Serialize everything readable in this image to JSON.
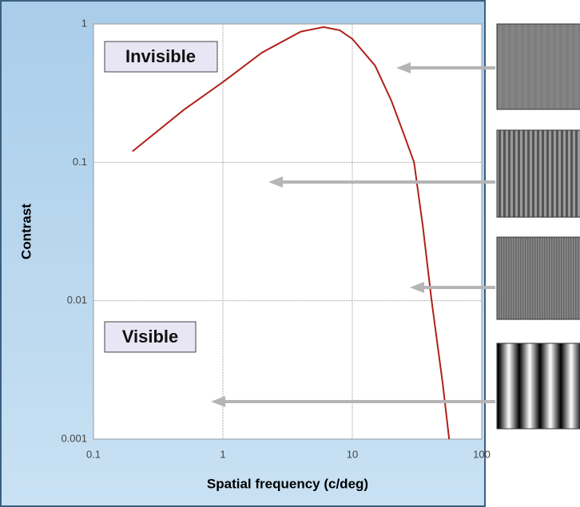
{
  "chart_data": {
    "type": "line",
    "xlabel": "Spatial frequency (c/deg)",
    "ylabel": "Contrast",
    "x": [
      0.2,
      0.5,
      1,
      2,
      4,
      6,
      8,
      10,
      15,
      20,
      25,
      30,
      35,
      41,
      50,
      56
    ],
    "series": [
      {
        "color": "#b0201a",
        "values": [
          0.12,
          0.24,
          0.38,
          0.62,
          0.88,
          0.95,
          0.9,
          0.78,
          0.5,
          0.28,
          0.16,
          0.1,
          0.035,
          0.01,
          0.0025,
          0.001
        ]
      }
    ],
    "xlim": [
      0.1,
      100
    ],
    "ylim": [
      0.001,
      1
    ],
    "xticks": [
      0.1,
      1,
      10,
      100
    ],
    "yticks": [
      0.001,
      0.01,
      0.1,
      1
    ],
    "xscale": "log",
    "yscale": "log",
    "grid": true,
    "annotations": [
      "Invisible",
      "Visible"
    ]
  }
}
